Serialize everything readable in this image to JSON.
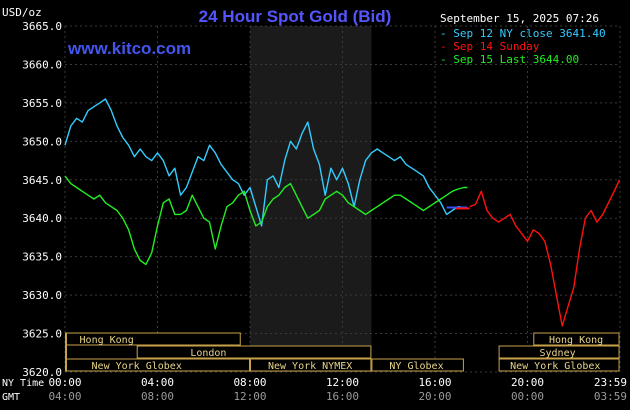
{
  "chart_data": {
    "type": "line",
    "title": "24 Hour Spot Gold (Bid)",
    "watermark": "www.kitco.com",
    "unit_label": "USD/oz",
    "timestamp": "September 15, 2025 07:26",
    "ylim": [
      3620,
      3665
    ],
    "yticks": [
      "3665.0",
      "3660.0",
      "3655.0",
      "3650.0",
      "3645.0",
      "3640.0",
      "3635.0",
      "3630.0",
      "3625.0",
      "3620.0"
    ],
    "x_rows": [
      {
        "label": "NY Time",
        "ticks": [
          "00:00",
          "04:00",
          "08:00",
          "12:00",
          "16:00",
          "20:00",
          "23:59"
        ]
      },
      {
        "label": "GMT",
        "ticks": [
          "04:00",
          "08:00",
          "12:00",
          "16:00",
          "20:00",
          "00:00",
          "03:59"
        ]
      }
    ],
    "legend": [
      "Sep 12 NY close 3641.40",
      "Sep 14 Sunday",
      "Sep 15 Last 3644.00"
    ],
    "sessions_top": [
      {
        "label": "Hong Kong"
      },
      {
        "label": "Hong Kong"
      }
    ],
    "sessions_mid": [
      {
        "label": "London"
      },
      {
        "label": "Sydney"
      }
    ],
    "sessions_bottom": [
      {
        "label": "New York Globex"
      },
      {
        "label": "New York NYMEX"
      },
      {
        "label": "NY Globex"
      },
      {
        "label": "New York Globex"
      }
    ],
    "series": [
      {
        "name": "Sep 12 NY close 3641.40",
        "color": "#33ccff",
        "x": [
          0,
          0.25,
          0.5,
          0.75,
          1,
          1.25,
          1.5,
          1.75,
          2,
          2.25,
          2.5,
          2.75,
          3,
          3.25,
          3.5,
          3.75,
          4,
          4.25,
          4.5,
          4.75,
          5,
          5.25,
          5.5,
          5.75,
          6,
          6.25,
          6.5,
          6.75,
          7,
          7.25,
          7.5,
          7.75,
          8,
          8.25,
          8.5,
          8.75,
          9,
          9.25,
          9.5,
          9.75,
          10,
          10.25,
          10.5,
          10.75,
          11,
          11.25,
          11.5,
          11.75,
          12,
          12.25,
          12.5,
          12.75,
          13,
          13.25,
          13.5,
          13.75,
          14,
          14.25,
          14.5,
          14.75,
          15,
          15.25,
          15.5,
          15.75,
          16,
          16.25,
          16.5,
          16.75,
          17,
          17.25
        ],
        "values": [
          3649.5,
          3652.0,
          3653.0,
          3652.5,
          3654.0,
          3654.5,
          3655.0,
          3655.5,
          3654.0,
          3652.0,
          3650.5,
          3649.5,
          3648.0,
          3649.0,
          3648.0,
          3647.5,
          3648.5,
          3647.5,
          3645.5,
          3646.5,
          3643.0,
          3644.0,
          3646.0,
          3648.0,
          3647.5,
          3649.5,
          3648.5,
          3647.0,
          3646.0,
          3645.0,
          3644.5,
          3643.0,
          3644.0,
          3641.5,
          3639.0,
          3645.0,
          3645.5,
          3644.0,
          3647.5,
          3650.0,
          3649.0,
          3651.0,
          3652.5,
          3649.0,
          3647.0,
          3643.0,
          3646.5,
          3645.0,
          3646.5,
          3644.5,
          3641.5,
          3645.0,
          3647.5,
          3648.5,
          3649.0,
          3648.5,
          3648.0,
          3647.5,
          3648.0,
          3647.0,
          3646.5,
          3646.0,
          3645.5,
          3644.0,
          3643.0,
          3642.0,
          3640.5,
          3641.0,
          3641.5,
          3641.4
        ]
      },
      {
        "name": "Sep 14 Sunday",
        "color": "#ff1111",
        "x": [
          17.5,
          17.75,
          18,
          18.25,
          18.5,
          18.75,
          19,
          19.25,
          19.5,
          19.75,
          20,
          20.25,
          20.5,
          20.75,
          21,
          21.25,
          21.5,
          21.75,
          22,
          22.25,
          22.5,
          22.75,
          23,
          23.25,
          23.5,
          23.75,
          23.98
        ],
        "values": [
          3641.5,
          3641.8,
          3643.5,
          3641.0,
          3640.0,
          3639.5,
          3640.0,
          3640.5,
          3639.0,
          3638.0,
          3637.0,
          3638.5,
          3638.0,
          3637.0,
          3634.0,
          3630.0,
          3626.0,
          3628.5,
          3631.0,
          3636.0,
          3640.0,
          3641.0,
          3639.5,
          3640.5,
          3642.0,
          3643.5,
          3645.0
        ]
      },
      {
        "name": "Sep 15 Last 3644.00",
        "color": "#22ee22",
        "x": [
          0,
          0.25,
          0.5,
          0.75,
          1,
          1.25,
          1.5,
          1.75,
          2,
          2.25,
          2.5,
          2.75,
          3,
          3.25,
          3.5,
          3.75,
          4,
          4.25,
          4.5,
          4.75,
          5,
          5.25,
          5.5,
          5.75,
          6,
          6.25,
          6.5,
          6.75,
          7,
          7.25,
          7.5,
          7.75,
          8,
          8.25,
          8.5,
          8.75,
          9,
          9.25,
          9.5,
          9.75,
          10,
          10.25,
          10.5,
          10.75,
          11,
          11.25,
          11.5,
          11.75,
          12,
          12.25,
          12.5,
          12.75,
          13,
          13.25,
          13.5,
          13.75,
          14,
          14.25,
          14.5,
          14.75,
          15,
          15.25,
          15.5,
          15.75,
          16,
          16.25,
          16.5,
          16.75,
          17,
          17.25,
          17.4
        ],
        "values": [
          3645.5,
          3644.5,
          3644.0,
          3643.5,
          3643.0,
          3642.5,
          3643.0,
          3642.0,
          3641.5,
          3641.0,
          3640.0,
          3638.5,
          3636.0,
          3634.5,
          3634.0,
          3635.5,
          3639.0,
          3642.0,
          3642.5,
          3640.5,
          3640.5,
          3641.0,
          3643.0,
          3641.5,
          3640.0,
          3639.5,
          3636.0,
          3639.0,
          3641.5,
          3642.0,
          3643.0,
          3643.5,
          3641.0,
          3639.0,
          3639.5,
          3641.5,
          3642.5,
          3643.0,
          3644.0,
          3644.5,
          3643.0,
          3641.5,
          3640.0,
          3640.5,
          3641.0,
          3642.5,
          3643.0,
          3643.5,
          3643.0,
          3642.0,
          3641.5,
          3641.0,
          3640.5,
          3641.0,
          3641.5,
          3642.0,
          3642.5,
          3643.0,
          3643.0,
          3642.5,
          3642.0,
          3641.5,
          3641.0,
          3641.5,
          3642.0,
          3642.5,
          3643.0,
          3643.5,
          3643.8,
          3644.0,
          3644.0
        ]
      }
    ]
  }
}
